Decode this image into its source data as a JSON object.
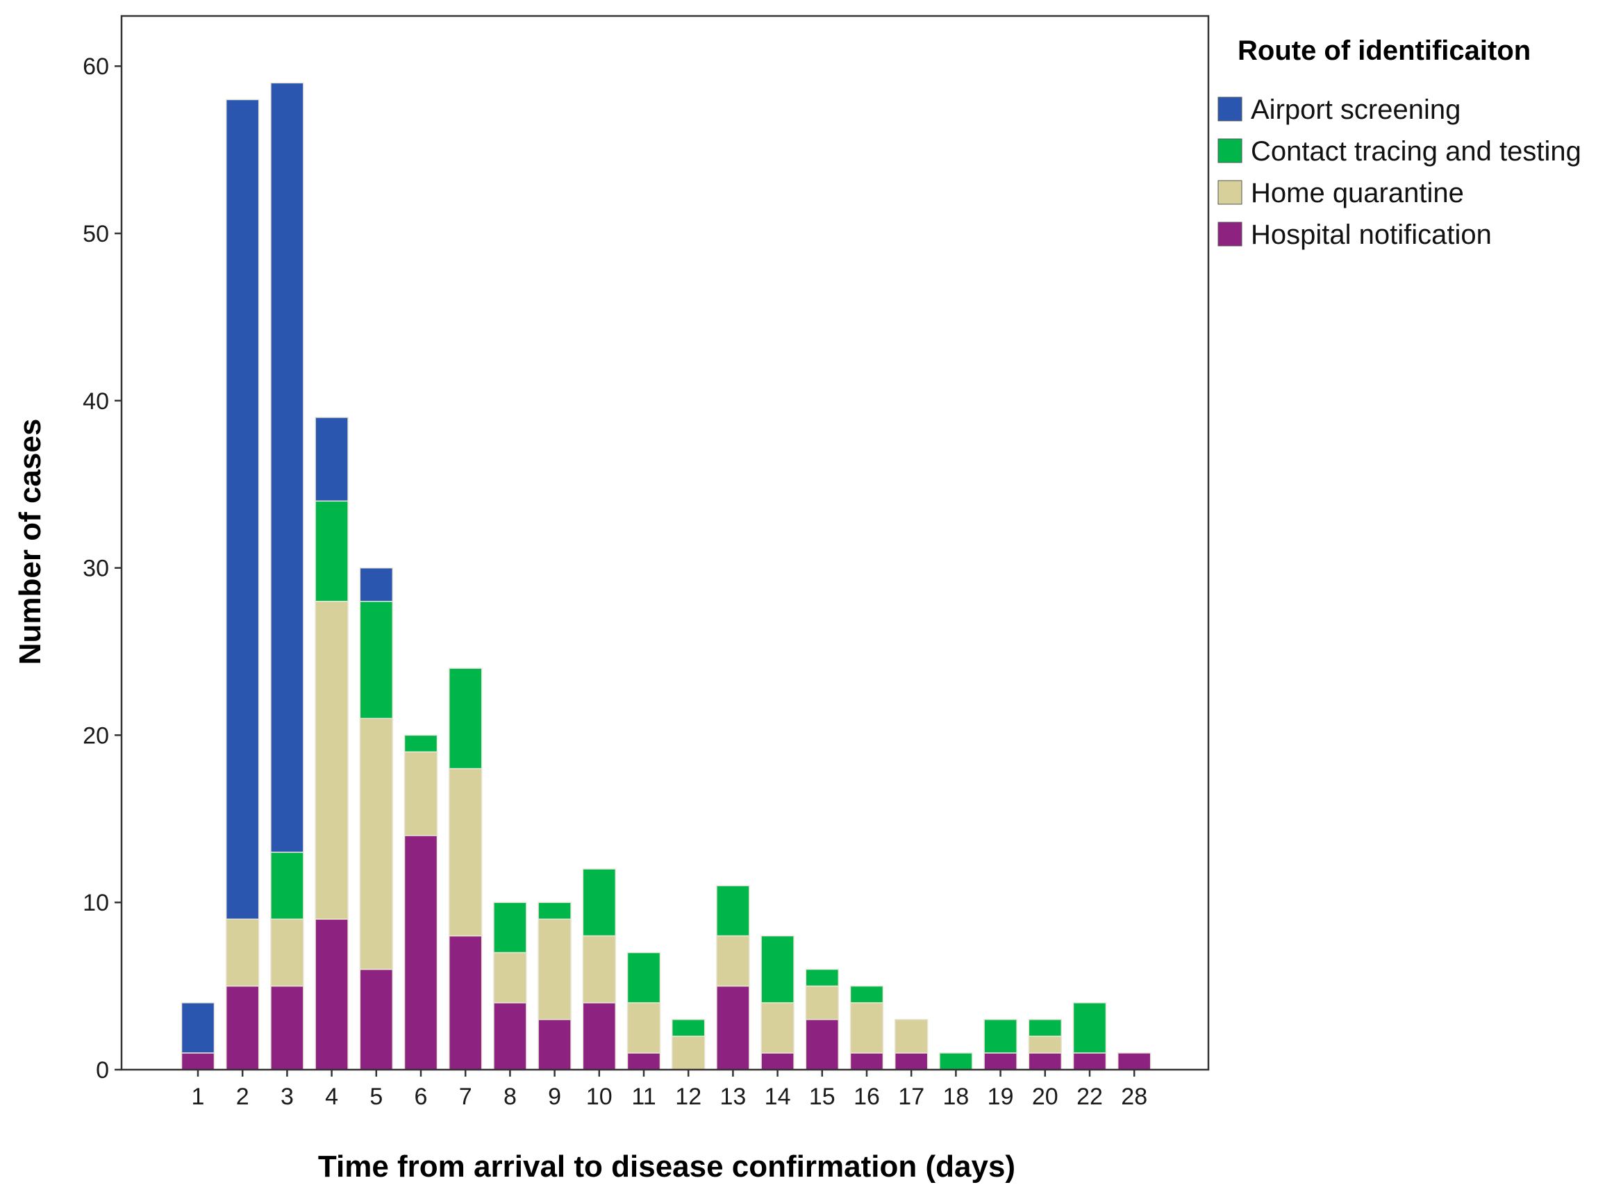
{
  "chart_data": {
    "type": "bar",
    "stacked": true,
    "title": "",
    "xlabel": "Time from arrival to disease confirmation (days)",
    "ylabel": "Number of cases",
    "ylim": [
      0,
      63
    ],
    "yticks": [
      0,
      10,
      20,
      30,
      40,
      50,
      60
    ],
    "grid": false,
    "legend": {
      "title": "Route of identificaiton",
      "position": "right"
    },
    "categories": [
      "1",
      "2",
      "3",
      "4",
      "5",
      "6",
      "7",
      "8",
      "9",
      "10",
      "11",
      "12",
      "13",
      "14",
      "15",
      "16",
      "17",
      "18",
      "19",
      "20",
      "22",
      "28"
    ],
    "series": [
      {
        "name": "Hospital notification",
        "color": "#8e2280",
        "values": [
          1,
          5,
          5,
          9,
          6,
          14,
          8,
          4,
          3,
          4,
          1,
          0,
          5,
          1,
          3,
          1,
          1,
          0,
          1,
          1,
          1,
          1
        ]
      },
      {
        "name": "Home quarantine",
        "color": "#d8d09a",
        "values": [
          0,
          4,
          4,
          19,
          15,
          5,
          10,
          3,
          6,
          4,
          3,
          2,
          3,
          3,
          2,
          3,
          2,
          0,
          0,
          1,
          0,
          0
        ]
      },
      {
        "name": "Contact tracing and testing",
        "color": "#00b64a",
        "values": [
          0,
          0,
          4,
          6,
          7,
          1,
          6,
          3,
          1,
          4,
          3,
          1,
          3,
          4,
          1,
          1,
          0,
          1,
          2,
          1,
          3,
          0
        ]
      },
      {
        "name": "Airport screening",
        "color": "#2a56b0",
        "values": [
          3,
          49,
          46,
          5,
          2,
          0,
          0,
          0,
          0,
          0,
          0,
          0,
          0,
          0,
          0,
          0,
          0,
          0,
          0,
          0,
          0,
          0
        ]
      }
    ],
    "legend_order": [
      "Airport screening",
      "Contact tracing and testing",
      "Home quarantine",
      "Hospital notification"
    ]
  }
}
